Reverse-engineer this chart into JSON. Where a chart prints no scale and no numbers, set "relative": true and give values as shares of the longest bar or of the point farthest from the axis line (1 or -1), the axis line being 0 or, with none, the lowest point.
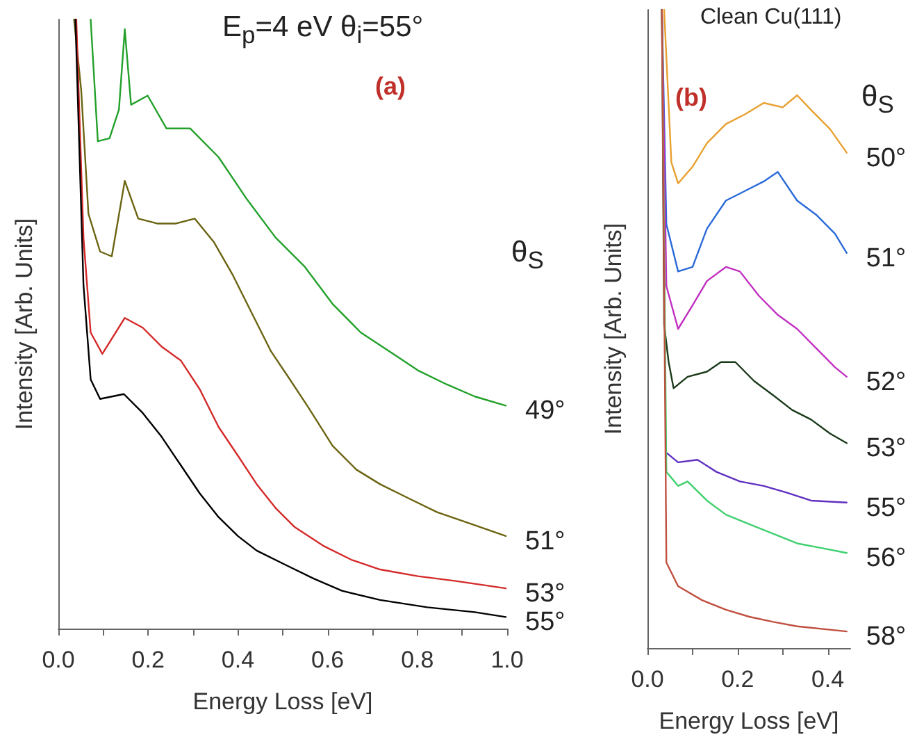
{
  "chart_data": [
    {
      "type": "line",
      "title": "E$_{p}$=4 eV   θ$_{i}$=55°",
      "annotations": [
        "(a)"
      ],
      "xlabel": "Energy Loss [eV]",
      "ylabel": "Intensity [Arb. Units]",
      "legend_title": "θ$_{S}$",
      "relative": true,
      "tick_labels": "x",
      "legend": false,
      "grid": false,
      "marker": "none",
      "line_style": "solid",
      "xlim": [
        0,
        1
      ],
      "xticks": [
        {
          "value": 0,
          "label": "0.0"
        },
        {
          "value": 0.1,
          "label": null
        },
        {
          "value": 0.2,
          "label": "0.2"
        },
        {
          "value": 0.3,
          "label": null
        },
        {
          "value": 0.4,
          "label": "0.4"
        },
        {
          "value": 0.5,
          "label": null
        },
        {
          "value": 0.6,
          "label": "0.6"
        },
        {
          "value": 0.7,
          "label": null
        },
        {
          "value": 0.8,
          "label": "0.8"
        },
        {
          "value": 0.9,
          "label": null
        },
        {
          "value": 1,
          "label": "1.0"
        }
      ],
      "series": [
        {
          "name": "49°",
          "color": "#22a02a",
          "x": [
            0.072,
            0.088,
            0.114,
            0.135,
            0.148,
            0.162,
            0.199,
            0.241,
            0.294,
            0.357,
            0.421,
            0.484,
            0.548,
            0.611,
            0.674,
            0.738,
            0.801,
            0.865,
            0.928,
            0.997
          ],
          "values": [
            1.0,
            0.8,
            0.805,
            0.852,
            0.984,
            0.86,
            0.875,
            0.821,
            0.821,
            0.774,
            0.704,
            0.642,
            0.595,
            0.533,
            0.486,
            0.455,
            0.424,
            0.401,
            0.381,
            0.366
          ]
        },
        {
          "name": "51°",
          "color": "#6b6411",
          "x": [
            0.035,
            0.051,
            0.067,
            0.093,
            0.119,
            0.148,
            0.178,
            0.22,
            0.262,
            0.304,
            0.347,
            0.389,
            0.431,
            0.474,
            0.516,
            0.558,
            0.611,
            0.664,
            0.717,
            0.78,
            0.844,
            0.907,
            0.997
          ],
          "values": [
            1.0,
            0.883,
            0.681,
            0.619,
            0.611,
            0.735,
            0.673,
            0.665,
            0.665,
            0.673,
            0.634,
            0.58,
            0.518,
            0.455,
            0.409,
            0.362,
            0.3,
            0.261,
            0.237,
            0.214,
            0.191,
            0.175,
            0.152
          ]
        },
        {
          "name": "53°",
          "color": "#d42a2a",
          "x": [
            0.04,
            0.056,
            0.072,
            0.098,
            0.148,
            0.188,
            0.23,
            0.273,
            0.315,
            0.357,
            0.4,
            0.442,
            0.484,
            0.526,
            0.59,
            0.653,
            0.717,
            0.801,
            0.886,
            0.997
          ],
          "values": [
            1.0,
            0.642,
            0.486,
            0.451,
            0.51,
            0.494,
            0.463,
            0.44,
            0.393,
            0.331,
            0.284,
            0.237,
            0.198,
            0.167,
            0.136,
            0.113,
            0.097,
            0.086,
            0.078,
            0.066
          ]
        },
        {
          "name": "55°",
          "color": "#000000",
          "x": [
            0.038,
            0.056,
            0.072,
            0.093,
            0.146,
            0.188,
            0.23,
            0.273,
            0.315,
            0.357,
            0.4,
            0.442,
            0.505,
            0.569,
            0.632,
            0.717,
            0.822,
            0.928,
            0.997
          ],
          "values": [
            1.0,
            0.564,
            0.409,
            0.377,
            0.385,
            0.354,
            0.315,
            0.268,
            0.222,
            0.183,
            0.152,
            0.128,
            0.105,
            0.082,
            0.062,
            0.047,
            0.035,
            0.027,
            0.019
          ]
        }
      ]
    },
    {
      "type": "line",
      "title": "Clean Cu(111)",
      "annotations": [
        "(b)"
      ],
      "xlabel": "Energy Loss [eV]",
      "ylabel": "Intensity [Arb. Units]",
      "legend_title": "θ$_{S}$",
      "relative": true,
      "tick_labels": "x",
      "legend": false,
      "grid": false,
      "marker": "none",
      "line_style": "solid",
      "xlim": [
        0,
        0.45
      ],
      "xticks": [
        {
          "value": 0,
          "label": "0.0"
        },
        {
          "value": 0.1,
          "label": null
        },
        {
          "value": 0.2,
          "label": "0.2"
        },
        {
          "value": 0.3,
          "label": null
        },
        {
          "value": 0.4,
          "label": "0.4"
        }
      ],
      "series": [
        {
          "name": "50°",
          "color": "#e8a030",
          "x": [
            0.037,
            0.053,
            0.068,
            0.1,
            0.132,
            0.174,
            0.216,
            0.258,
            0.3,
            0.332,
            0.363,
            0.405,
            0.442
          ],
          "values": [
            1.0,
            0.761,
            0.728,
            0.754,
            0.791,
            0.821,
            0.836,
            0.854,
            0.847,
            0.866,
            0.843,
            0.813,
            0.776
          ]
        },
        {
          "name": "51°",
          "color": "#2a6ad8",
          "x": [
            0.032,
            0.042,
            0.068,
            0.1,
            0.132,
            0.174,
            0.216,
            0.258,
            0.289,
            0.332,
            0.374,
            0.416,
            0.442
          ],
          "values": [
            1.0,
            0.664,
            0.59,
            0.597,
            0.657,
            0.701,
            0.716,
            0.731,
            0.746,
            0.701,
            0.679,
            0.649,
            0.619
          ]
        },
        {
          "name": "52°",
          "color": "#c030c0",
          "x": [
            0.032,
            0.042,
            0.068,
            0.1,
            0.132,
            0.174,
            0.205,
            0.247,
            0.289,
            0.332,
            0.374,
            0.416,
            0.442
          ],
          "values": [
            1.0,
            0.567,
            0.5,
            0.537,
            0.575,
            0.597,
            0.59,
            0.552,
            0.522,
            0.5,
            0.47,
            0.44,
            0.425
          ]
        },
        {
          "name": "53°",
          "color": "#1a3a1a",
          "x": [
            0.032,
            0.037,
            0.047,
            0.058,
            0.089,
            0.132,
            0.163,
            0.195,
            0.237,
            0.279,
            0.321,
            0.363,
            0.405,
            0.442
          ],
          "values": [
            1.0,
            0.507,
            0.448,
            0.407,
            0.425,
            0.433,
            0.448,
            0.448,
            0.418,
            0.396,
            0.373,
            0.358,
            0.336,
            0.321
          ]
        },
        {
          "name": "55°",
          "color": "#6030c0",
          "x": [
            0.042,
            0.068,
            0.111,
            0.153,
            0.205,
            0.258,
            0.311,
            0.363,
            0.442
          ],
          "values": [
            0.306,
            0.291,
            0.295,
            0.276,
            0.261,
            0.254,
            0.243,
            0.231,
            0.228
          ]
        },
        {
          "name": "56°",
          "color": "#40d070",
          "x": [
            0.032,
            0.042,
            0.068,
            0.089,
            0.132,
            0.174,
            0.226,
            0.279,
            0.332,
            0.384,
            0.442
          ],
          "values": [
            1.0,
            0.276,
            0.254,
            0.261,
            0.231,
            0.209,
            0.194,
            0.179,
            0.164,
            0.157,
            0.149
          ]
        },
        {
          "name": "58°",
          "color": "#c05040",
          "x": [
            0.032,
            0.042,
            0.068,
            0.121,
            0.174,
            0.226,
            0.279,
            0.332,
            0.442
          ],
          "values": [
            1.0,
            0.134,
            0.097,
            0.075,
            0.06,
            0.049,
            0.041,
            0.034,
            0.026
          ]
        }
      ]
    }
  ]
}
